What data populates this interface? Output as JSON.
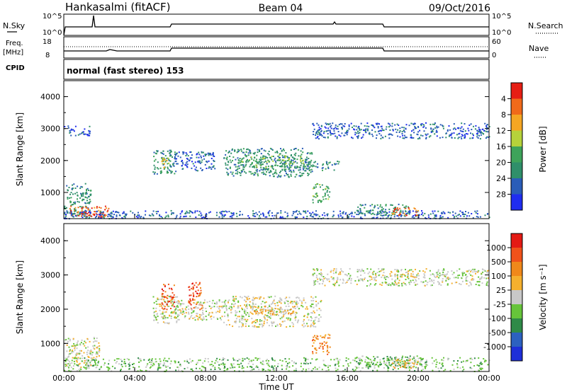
{
  "header": {
    "station": "Hankasalmi (fitACF)",
    "beam": "Beam 04",
    "date": "09/Oct/2016"
  },
  "noise_panel": {
    "left_label": "N.Sky",
    "left_ticks": [
      "10^5",
      "10^0"
    ],
    "right_label": "N.Search",
    "right_ticks": [
      "10^5",
      "10^0"
    ]
  },
  "freq_panel": {
    "left_label_1": "Freq.",
    "left_label_2": "[MHz]",
    "left_ticks": [
      "18",
      "8"
    ],
    "right_label": "Nave",
    "right_ticks": [
      "60",
      "0"
    ]
  },
  "cpid_panel": {
    "label": "CPID",
    "text": "normal (fast stereo) 153"
  },
  "chart_data": [
    {
      "type": "heatmap",
      "parameter": "Power",
      "ylabel": "Slant Range [km]",
      "ylim": [
        180,
        4500
      ],
      "yticks": [
        1000,
        2000,
        3000,
        4000
      ],
      "xlim": [
        0,
        24
      ],
      "colorbar": {
        "label": "Power [dB]",
        "ticks": [
          "4",
          "8",
          "12",
          "16",
          "20",
          "24",
          "28"
        ],
        "colors": [
          "#1f2df0",
          "#2a5db8",
          "#2f8f6a",
          "#3ea35a",
          "#b6d23a",
          "#f5a623",
          "#f06a1a",
          "#e61e14"
        ]
      },
      "regions": [
        {
          "x0": 0.0,
          "x1": 1.5,
          "y0": 250,
          "y1": 1300,
          "level": 2
        },
        {
          "x0": 0.3,
          "x1": 2.5,
          "y0": 250,
          "y1": 600,
          "level": 6
        },
        {
          "x0": 0.8,
          "x1": 2.2,
          "y0": 250,
          "y1": 400,
          "level": 7
        },
        {
          "x0": 0.0,
          "x1": 24.0,
          "y0": 200,
          "y1": 450,
          "level": 1
        },
        {
          "x0": 5.0,
          "x1": 6.3,
          "y0": 1600,
          "y1": 2350,
          "level": 2
        },
        {
          "x0": 5.5,
          "x1": 5.9,
          "y0": 1700,
          "y1": 2100,
          "level": 4
        },
        {
          "x0": 6.0,
          "x1": 8.5,
          "y0": 1700,
          "y1": 2300,
          "level": 1
        },
        {
          "x0": 9.0,
          "x1": 14.0,
          "y0": 1500,
          "y1": 2400,
          "level": 2
        },
        {
          "x0": 10.0,
          "x1": 13.5,
          "y0": 1800,
          "y1": 2200,
          "level": 3
        },
        {
          "x0": 13.5,
          "x1": 15.5,
          "y0": 1700,
          "y1": 2000,
          "level": 2
        },
        {
          "x0": 14.0,
          "x1": 15.0,
          "y0": 700,
          "y1": 1300,
          "level": 3
        },
        {
          "x0": 14.0,
          "x1": 24.0,
          "y0": 2700,
          "y1": 3200,
          "level": 1
        },
        {
          "x0": 16.5,
          "x1": 19.5,
          "y0": 300,
          "y1": 650,
          "level": 2
        },
        {
          "x0": 18.5,
          "x1": 20.0,
          "y0": 300,
          "y1": 550,
          "level": 6
        },
        {
          "x0": 0.0,
          "x1": 1.5,
          "y0": 2800,
          "y1": 3100,
          "level": 1
        }
      ]
    },
    {
      "type": "heatmap",
      "parameter": "Velocity",
      "ylabel": "Slant Range [km]",
      "ylim": [
        180,
        4500
      ],
      "yticks": [
        1000,
        2000,
        3000,
        4000
      ],
      "xlim": [
        0,
        24
      ],
      "xticks": [
        "00:00",
        "04:00",
        "08:00",
        "12:00",
        "16:00",
        "20:00",
        "00:00"
      ],
      "xlabel": "Time UT",
      "colorbar": {
        "label": "Velocity [m s⁻¹]",
        "ticks": [
          "1000",
          "500",
          "100",
          "25",
          "-25",
          "-100",
          "-500",
          "-1000"
        ],
        "colors": [
          "#1e2fd8",
          "#2c61c0",
          "#2f8a48",
          "#66c43a",
          "#c8c8c8",
          "#f5b02e",
          "#f0881a",
          "#f0521a",
          "#e41a14"
        ]
      },
      "regions": [
        {
          "x0": 0.0,
          "x1": 2.0,
          "y0": 300,
          "y1": 1200,
          "level": 4
        },
        {
          "x0": 0.0,
          "x1": 24.0,
          "y0": 200,
          "y1": 600,
          "level": 3
        },
        {
          "x0": 5.0,
          "x1": 6.5,
          "y0": 1600,
          "y1": 2400,
          "level": 4
        },
        {
          "x0": 5.5,
          "x1": 6.2,
          "y0": 2000,
          "y1": 2800,
          "level": 7
        },
        {
          "x0": 7.0,
          "x1": 7.8,
          "y0": 2000,
          "y1": 2800,
          "level": 7
        },
        {
          "x0": 6.0,
          "x1": 9.0,
          "y0": 1700,
          "y1": 2300,
          "level": 4
        },
        {
          "x0": 9.0,
          "x1": 14.5,
          "y0": 1500,
          "y1": 2400,
          "level": 4
        },
        {
          "x0": 10.5,
          "x1": 13.0,
          "y0": 1850,
          "y1": 2100,
          "level": 5
        },
        {
          "x0": 14.0,
          "x1": 15.0,
          "y0": 700,
          "y1": 1300,
          "level": 6
        },
        {
          "x0": 14.0,
          "x1": 24.0,
          "y0": 2700,
          "y1": 3200,
          "level": 4
        },
        {
          "x0": 16.5,
          "x1": 20.5,
          "y0": 300,
          "y1": 650,
          "level": 3
        },
        {
          "x0": 18.5,
          "x1": 20.0,
          "y0": 300,
          "y1": 550,
          "level": 5
        }
      ]
    }
  ]
}
